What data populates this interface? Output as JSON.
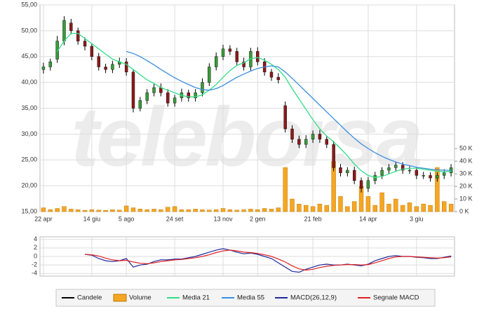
{
  "chart_data": [
    {
      "type": "candlestick",
      "watermark": "teleborsa",
      "categories": [
        "22 apr",
        null,
        null,
        null,
        null,
        null,
        null,
        "14 giu",
        null,
        null,
        null,
        null,
        "5 ago",
        null,
        null,
        null,
        null,
        null,
        null,
        "24 set",
        null,
        null,
        null,
        null,
        null,
        null,
        "13 nov",
        null,
        null,
        null,
        null,
        "2 gen",
        null,
        null,
        null,
        null,
        null,
        null,
        null,
        "21 feb",
        null,
        null,
        null,
        null,
        null,
        null,
        null,
        "14 apr",
        null,
        null,
        null,
        null,
        null,
        null,
        "3 giu",
        null,
        null,
        null,
        null,
        null
      ],
      "candles": {
        "name": "Candele",
        "color": "#000000",
        "up_color": "#3a9a3a",
        "down_color": "#8b1a1a",
        "open": [
          42.5,
          43,
          44.5,
          48,
          51.5,
          50,
          48,
          47,
          45,
          43,
          42.5,
          43.5,
          44,
          42,
          35,
          36.5,
          38,
          39,
          38,
          36,
          37,
          38,
          37,
          38,
          40,
          43,
          45,
          46.5,
          46,
          44,
          43,
          46,
          44,
          42,
          41,
          35.5,
          31,
          29,
          28,
          29,
          30,
          29,
          28,
          23.5,
          22.5,
          23,
          21,
          19.5,
          21,
          22,
          23,
          23.5,
          24,
          23,
          23,
          22,
          22,
          21.5,
          22,
          22.5
        ],
        "high": [
          43.8,
          44.6,
          49,
          52.8,
          52.3,
          50.6,
          48.7,
          47.6,
          45.7,
          43.6,
          44.2,
          44.8,
          44.7,
          42.6,
          37.2,
          38.7,
          39.7,
          39.8,
          38.7,
          37.6,
          38.8,
          38.6,
          38.7,
          40.8,
          43.7,
          45.8,
          47.3,
          47.2,
          46.7,
          44.8,
          46.7,
          46.8,
          44.7,
          42.6,
          41.8,
          36.3,
          31.7,
          29.7,
          29.8,
          30.7,
          30.8,
          29.6,
          28.7,
          24.2,
          23.6,
          23.7,
          21.6,
          21.7,
          22.7,
          23.6,
          24.2,
          24.7,
          24.6,
          23.8,
          23.6,
          22.7,
          22.6,
          22.6,
          23.2,
          24.2
        ],
        "low": [
          41.7,
          42.3,
          43.8,
          47.2,
          49.3,
          47.3,
          46.2,
          44.3,
          42.3,
          41.8,
          41.8,
          42.8,
          41.3,
          34.2,
          34.4,
          35.8,
          37.3,
          37.3,
          35.3,
          35.3,
          36.3,
          36.3,
          36.3,
          37.3,
          39.3,
          42.3,
          44.3,
          45.3,
          43.3,
          42.3,
          42.3,
          43.3,
          41.3,
          40.3,
          39.8,
          30.3,
          28.3,
          27.3,
          27.3,
          28.3,
          28.3,
          27.3,
          22.8,
          21.8,
          21.8,
          20.3,
          18.7,
          18.8,
          20.3,
          21.3,
          22.3,
          22.8,
          22.3,
          22.3,
          21.3,
          21.3,
          20.8,
          20.8,
          21.3,
          21.8
        ],
        "close": [
          43,
          44,
          48,
          52,
          50,
          48,
          47,
          45,
          43,
          42.5,
          43.5,
          44,
          42,
          35,
          36.5,
          38,
          39,
          38,
          36,
          37,
          38,
          37,
          38,
          40,
          43,
          45,
          46.5,
          46,
          44,
          43,
          46,
          44,
          42,
          41,
          40.5,
          31,
          29,
          28,
          29,
          30,
          29,
          28,
          23.5,
          22.5,
          23,
          21,
          19.5,
          21,
          22,
          23,
          23.5,
          24,
          23,
          23,
          22,
          22,
          21.5,
          22,
          22.5,
          23.5
        ]
      },
      "series": [
        {
          "name": "Volume",
          "type": "bar",
          "axis": "y2",
          "color": "#f5a623",
          "values": [
            3000,
            1500,
            2500,
            4000,
            2000,
            1500,
            1000,
            1500,
            1200,
            1000,
            1500,
            1200,
            4500,
            3000,
            2000,
            1500,
            2000,
            1500,
            3500,
            4000,
            1500,
            1500,
            2000,
            1500,
            1200,
            1500,
            2500,
            1500,
            1200,
            1500,
            2000,
            1500,
            2500,
            2000,
            3000,
            35000,
            10000,
            6000,
            5000,
            4000,
            6000,
            5000,
            40000,
            12000,
            4000,
            8000,
            20000,
            12000,
            5000,
            15000,
            6000,
            10000,
            5000,
            7000,
            4000,
            6000,
            5000,
            35000,
            8000,
            6000
          ]
        },
        {
          "name": "Media 21",
          "type": "line",
          "color": "#33dd88",
          "values": [
            null,
            null,
            46,
            48,
            49.5,
            49.5,
            48.5,
            47.5,
            46.5,
            45.5,
            44.5,
            44,
            43.5,
            42.5,
            41.5,
            40.5,
            39.8,
            39,
            38.5,
            38,
            37.5,
            37.2,
            37.2,
            37.6,
            38.5,
            39.6,
            41,
            42.3,
            43.3,
            43.8,
            44.6,
            44.8,
            44.3,
            43.5,
            42.5,
            41,
            38.8,
            36.8,
            34.8,
            32.8,
            31,
            29.6,
            28.5,
            27.2,
            25.8,
            24.2,
            22.9,
            22,
            21.6,
            21.8,
            22.3,
            22.8,
            23.2,
            23.4,
            23.4,
            23.2,
            23,
            22.8,
            22.7,
            22.8
          ]
        },
        {
          "name": "Media 55",
          "type": "line",
          "color": "#3a8ee0",
          "values": [
            null,
            null,
            null,
            null,
            null,
            null,
            null,
            null,
            null,
            null,
            null,
            null,
            46,
            45.6,
            45,
            44.2,
            43.4,
            42.5,
            41.7,
            40.9,
            40.2,
            39.6,
            39,
            38.6,
            38.5,
            38.8,
            39.4,
            40.2,
            41,
            41.6,
            42.2,
            42.7,
            43,
            43.2,
            43,
            42,
            40.8,
            39.5,
            38.2,
            36.9,
            35.6,
            34.3,
            33,
            31.7,
            30.4,
            29.2,
            28.1,
            27.2,
            26.4,
            25.7,
            25.1,
            24.6,
            24.2,
            23.9,
            23.6,
            23.4,
            23.2,
            23.1,
            23,
            23
          ]
        }
      ],
      "ylim": [
        15,
        55
      ],
      "yticks": [
        {
          "value": 15,
          "label": "15,00"
        },
        {
          "value": 20,
          "label": "20,00"
        },
        {
          "value": 25,
          "label": "25,00"
        },
        {
          "value": 30,
          "label": "30,00"
        },
        {
          "value": 35,
          "label": "35,00"
        },
        {
          "value": 40,
          "label": "40,00"
        },
        {
          "value": 45,
          "label": "45,00"
        },
        {
          "value": 50,
          "label": "50,00"
        },
        {
          "value": 55,
          "label": "55,00"
        }
      ],
      "y2lim": [
        0,
        164000
      ],
      "y2ticks": [
        {
          "value": 0,
          "label": "0 K"
        },
        {
          "value": 10000,
          "label": "10 K"
        },
        {
          "value": 20000,
          "label": "20 K"
        },
        {
          "value": 30000,
          "label": "30 K"
        },
        {
          "value": 40000,
          "label": "40 K"
        },
        {
          "value": 50000,
          "label": "50 K"
        }
      ],
      "grid": true
    },
    {
      "type": "line",
      "series": [
        {
          "name": "MACD(26,12,9)",
          "color": "#1f2a9c",
          "values": [
            null,
            null,
            null,
            null,
            null,
            null,
            0.5,
            0.3,
            -0.5,
            -1,
            -1.2,
            -1,
            -0.5,
            -2.5,
            -2,
            -1.8,
            -1.2,
            -0.8,
            -0.8,
            -0.6,
            -0.6,
            -0.3,
            0,
            0.5,
            1,
            1.5,
            1.8,
            1.5,
            1,
            0.6,
            0.8,
            0.5,
            0,
            -0.5,
            -1.5,
            -2.5,
            -3.5,
            -3.7,
            -3,
            -2.5,
            -2,
            -1.8,
            -2,
            -2,
            -1.8,
            -2,
            -2.2,
            -1.8,
            -1,
            -0.5,
            0,
            0.2,
            0,
            0,
            -0.2,
            -0.3,
            -0.5,
            -0.5,
            -0.2,
            0.1
          ]
        },
        {
          "name": "Segnale MACD",
          "color": "#e02020",
          "values": [
            null,
            null,
            null,
            null,
            null,
            null,
            0.5,
            0.4,
            0.1,
            -0.4,
            -0.8,
            -1,
            -0.9,
            -1.3,
            -1.6,
            -1.7,
            -1.5,
            -1.2,
            -1,
            -0.8,
            -0.7,
            -0.5,
            -0.3,
            0,
            0.4,
            0.9,
            1.3,
            1.5,
            1.3,
            1,
            0.9,
            0.7,
            0.4,
            0,
            -0.6,
            -1.3,
            -2.2,
            -2.9,
            -3.2,
            -3,
            -2.6,
            -2.3,
            -2.1,
            -2,
            -1.9,
            -1.9,
            -2,
            -1.9,
            -1.5,
            -1,
            -0.5,
            -0.1,
            0,
            0,
            -0.1,
            -0.2,
            -0.3,
            -0.4,
            -0.3,
            -0.1
          ]
        }
      ],
      "ylim": [
        -4.6,
        4.6
      ],
      "yticks": [
        4,
        2,
        0,
        -2,
        -4
      ],
      "grid": true
    }
  ]
}
